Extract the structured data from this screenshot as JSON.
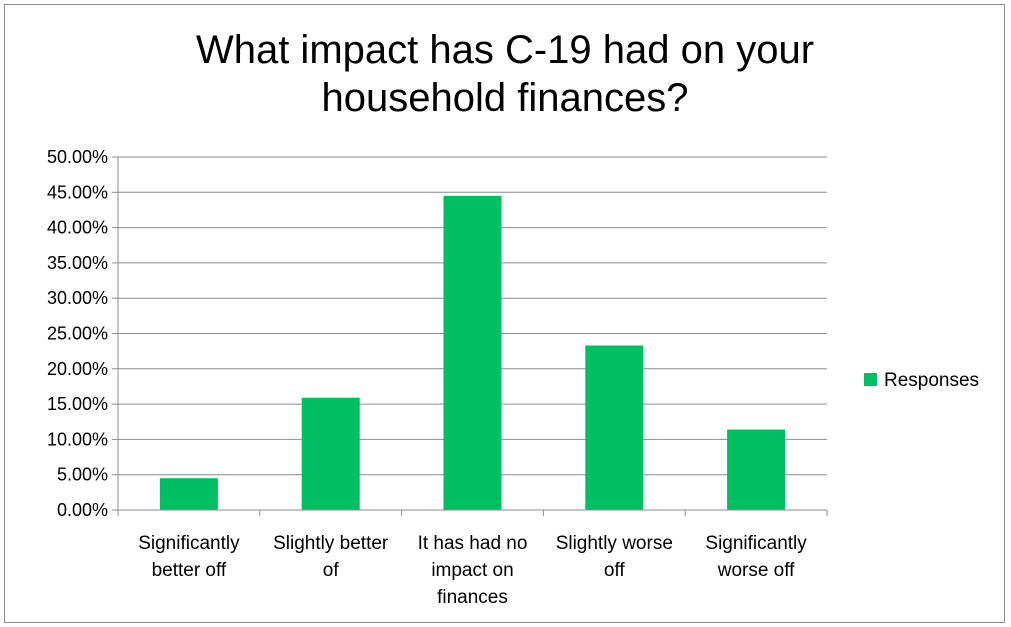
{
  "chart_data": {
    "type": "bar",
    "title": "What impact has C-19 had on your household finances?",
    "title_lines": [
      "What impact has C-19 had on your",
      "household finances?"
    ],
    "categories": [
      "Significantly better off",
      "Slightly better of",
      "It has had no impact on finances",
      "Slightly worse off",
      "Significantly worse off"
    ],
    "category_lines": [
      [
        "Significantly",
        "better off"
      ],
      [
        "Slightly better",
        "of"
      ],
      [
        "It has had no",
        "impact on",
        "finances"
      ],
      [
        "Slightly worse",
        "off"
      ],
      [
        "Significantly",
        "worse off"
      ]
    ],
    "series": [
      {
        "name": "Responses",
        "values": [
          0.045,
          0.159,
          0.445,
          0.233,
          0.114
        ],
        "color": "#00bf63"
      }
    ],
    "ylim": [
      0,
      0.5
    ],
    "yticks": [
      0,
      0.05,
      0.1,
      0.15,
      0.2,
      0.25,
      0.3,
      0.35,
      0.4,
      0.45,
      0.5
    ],
    "ytick_labels": [
      "0.00%",
      "5.00%",
      "10.00%",
      "15.00%",
      "20.00%",
      "25.00%",
      "30.00%",
      "35.00%",
      "40.00%",
      "45.00%",
      "50.00%"
    ],
    "grid": true,
    "legend_position": "right",
    "xlabel": "",
    "ylabel": ""
  }
}
